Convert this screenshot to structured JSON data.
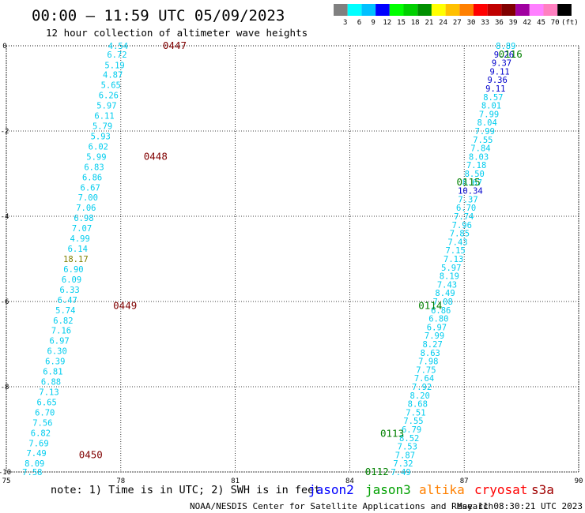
{
  "header": {
    "title": "00:00 – 11:59 UTC 05/09/2023",
    "subtitle": "12 hour collection of altimeter wave heights"
  },
  "color_scale": {
    "colors": [
      "#808080",
      "#00ffff",
      "#00c0ff",
      "#0000ff",
      "#00ff00",
      "#00d000",
      "#009000",
      "#ffff00",
      "#ffc000",
      "#ff8000",
      "#ff0000",
      "#c00000",
      "#800000",
      "#a000a0",
      "#ff80ff",
      "#ff80c0",
      "#000000"
    ],
    "labels": [
      "3",
      "6",
      "9",
      "12",
      "15",
      "18",
      "21",
      "24",
      "27",
      "30",
      "33",
      "36",
      "39",
      "42",
      "45",
      "70",
      "(ft)"
    ]
  },
  "axes": {
    "x_ticks": [
      "75",
      "78",
      "81",
      "84",
      "87",
      "90"
    ],
    "y_ticks": [
      "0",
      "-2",
      "-4",
      "-6",
      "-8",
      "-10"
    ],
    "x_range": [
      75,
      90
    ],
    "y_range": [
      0,
      -10
    ],
    "grid": true
  },
  "orbit_labels": [
    {
      "text": "0447",
      "lon": 79.1,
      "lat": 0.0,
      "color": "#800000"
    },
    {
      "text": "0448",
      "lon": 78.6,
      "lat": -2.6,
      "color": "#800000"
    },
    {
      "text": "0449",
      "lon": 77.8,
      "lat": -6.1,
      "color": "#800000"
    },
    {
      "text": "0450",
      "lon": 76.9,
      "lat": -9.6,
      "color": "#800000"
    },
    {
      "text": "0116",
      "lon": 87.9,
      "lat": -0.2,
      "color": "#008000"
    },
    {
      "text": "0115",
      "lon": 86.8,
      "lat": -3.2,
      "color": "#008000"
    },
    {
      "text": "0114",
      "lon": 85.8,
      "lat": -6.1,
      "color": "#008000"
    },
    {
      "text": "0113",
      "lon": 84.8,
      "lat": -9.1,
      "color": "#008000"
    },
    {
      "text": "0112",
      "lon": 84.4,
      "lat": -10.0,
      "color": "#008000"
    }
  ],
  "tracks": [
    {
      "color": "#00ccee",
      "points": [
        {
          "lon": 77.93,
          "lat": 0.0,
          "v": "4.54"
        },
        {
          "lon": 77.9,
          "lat": -0.2,
          "v": "6.72"
        },
        {
          "lon": 77.84,
          "lat": -0.45,
          "v": "5.19"
        },
        {
          "lon": 77.79,
          "lat": -0.68,
          "v": "4.87"
        },
        {
          "lon": 77.74,
          "lat": -0.92,
          "v": "5.65"
        },
        {
          "lon": 77.68,
          "lat": -1.16,
          "v": "6.26"
        },
        {
          "lon": 77.63,
          "lat": -1.4,
          "v": "5.97"
        },
        {
          "lon": 77.57,
          "lat": -1.64,
          "v": "6.11"
        },
        {
          "lon": 77.52,
          "lat": -1.88,
          "v": "5.79"
        },
        {
          "lon": 77.47,
          "lat": -2.12,
          "v": "5.93"
        },
        {
          "lon": 77.41,
          "lat": -2.36,
          "v": "6.02"
        },
        {
          "lon": 77.36,
          "lat": -2.6,
          "v": "5.99"
        },
        {
          "lon": 77.3,
          "lat": -2.84,
          "v": "6.83"
        },
        {
          "lon": 77.25,
          "lat": -3.08,
          "v": "6.86"
        },
        {
          "lon": 77.2,
          "lat": -3.32,
          "v": "6.67"
        },
        {
          "lon": 77.14,
          "lat": -3.56,
          "v": "7.00"
        },
        {
          "lon": 77.09,
          "lat": -3.8,
          "v": "7.06"
        },
        {
          "lon": 77.03,
          "lat": -4.04,
          "v": "6.98"
        },
        {
          "lon": 76.98,
          "lat": -4.28,
          "v": "7.07"
        },
        {
          "lon": 76.93,
          "lat": -4.52,
          "v": "4.99"
        },
        {
          "lon": 76.87,
          "lat": -4.76,
          "v": "6.14"
        },
        {
          "lon": 76.82,
          "lat": -5.0,
          "v": "18.17",
          "color": "#808000"
        },
        {
          "lon": 76.76,
          "lat": -5.24,
          "v": "6.90"
        },
        {
          "lon": 76.71,
          "lat": -5.48,
          "v": "6.09"
        },
        {
          "lon": 76.66,
          "lat": -5.72,
          "v": "6.33"
        },
        {
          "lon": 76.6,
          "lat": -5.96,
          "v": "6.47"
        },
        {
          "lon": 76.55,
          "lat": -6.2,
          "v": "5.74"
        },
        {
          "lon": 76.49,
          "lat": -6.44,
          "v": "6.82"
        },
        {
          "lon": 76.44,
          "lat": -6.68,
          "v": "7.16"
        },
        {
          "lon": 76.39,
          "lat": -6.92,
          "v": "6.97"
        },
        {
          "lon": 76.33,
          "lat": -7.16,
          "v": "6.30"
        },
        {
          "lon": 76.28,
          "lat": -7.4,
          "v": "6.39"
        },
        {
          "lon": 76.22,
          "lat": -7.64,
          "v": "6.81"
        },
        {
          "lon": 76.17,
          "lat": -7.88,
          "v": "6.88"
        },
        {
          "lon": 76.12,
          "lat": -8.12,
          "v": "7.13"
        },
        {
          "lon": 76.06,
          "lat": -8.36,
          "v": "6.65"
        },
        {
          "lon": 76.01,
          "lat": -8.6,
          "v": "6.70"
        },
        {
          "lon": 75.95,
          "lat": -8.84,
          "v": "7.56"
        },
        {
          "lon": 75.9,
          "lat": -9.08,
          "v": "6.82"
        },
        {
          "lon": 75.85,
          "lat": -9.32,
          "v": "7.69"
        },
        {
          "lon": 75.79,
          "lat": -9.56,
          "v": "7.49"
        },
        {
          "lon": 75.74,
          "lat": -9.8,
          "v": "8.09"
        },
        {
          "lon": 75.68,
          "lat": -10.0,
          "v": "7.58"
        }
      ]
    },
    {
      "color": "#00ccee",
      "points": [
        {
          "lon": 88.09,
          "lat": 0.0,
          "v": "8.89"
        },
        {
          "lon": 88.04,
          "lat": -0.2,
          "v": "9.26",
          "color": "#0000cc"
        },
        {
          "lon": 87.98,
          "lat": -0.4,
          "v": "9.37",
          "color": "#0000cc"
        },
        {
          "lon": 87.93,
          "lat": -0.6,
          "v": "9.11",
          "color": "#0000cc"
        },
        {
          "lon": 87.87,
          "lat": -0.8,
          "v": "9.36",
          "color": "#0000cc"
        },
        {
          "lon": 87.82,
          "lat": -1.0,
          "v": "9.11",
          "color": "#0000cc"
        },
        {
          "lon": 87.76,
          "lat": -1.2,
          "v": "8.57"
        },
        {
          "lon": 87.71,
          "lat": -1.4,
          "v": "8.01"
        },
        {
          "lon": 87.65,
          "lat": -1.6,
          "v": "7.99"
        },
        {
          "lon": 87.6,
          "lat": -1.8,
          "v": "8.04"
        },
        {
          "lon": 87.54,
          "lat": -2.0,
          "v": "7.99"
        },
        {
          "lon": 87.49,
          "lat": -2.2,
          "v": "7.55"
        },
        {
          "lon": 87.43,
          "lat": -2.4,
          "v": "7.84"
        },
        {
          "lon": 87.38,
          "lat": -2.6,
          "v": "8.03"
        },
        {
          "lon": 87.32,
          "lat": -2.8,
          "v": "7.18"
        },
        {
          "lon": 87.27,
          "lat": -3.0,
          "v": "8.50"
        },
        {
          "lon": 87.21,
          "lat": -3.2,
          "v": "8.67"
        },
        {
          "lon": 87.16,
          "lat": -3.4,
          "v": "10.34",
          "color": "#0000cc"
        },
        {
          "lon": 87.1,
          "lat": -3.6,
          "v": "7.37"
        },
        {
          "lon": 87.05,
          "lat": -3.8,
          "v": "6.70"
        },
        {
          "lon": 86.99,
          "lat": -4.0,
          "v": "7.74"
        },
        {
          "lon": 86.94,
          "lat": -4.2,
          "v": "7.96"
        },
        {
          "lon": 86.88,
          "lat": -4.4,
          "v": "7.85"
        },
        {
          "lon": 86.83,
          "lat": -4.6,
          "v": "7.43"
        },
        {
          "lon": 86.77,
          "lat": -4.8,
          "v": "7.15"
        },
        {
          "lon": 86.72,
          "lat": -5.0,
          "v": "7.13"
        },
        {
          "lon": 86.66,
          "lat": -5.2,
          "v": "5.97"
        },
        {
          "lon": 86.61,
          "lat": -5.4,
          "v": "8.19"
        },
        {
          "lon": 86.55,
          "lat": -5.6,
          "v": "7.43"
        },
        {
          "lon": 86.5,
          "lat": -5.8,
          "v": "8.49"
        },
        {
          "lon": 86.44,
          "lat": -6.0,
          "v": "7.08"
        },
        {
          "lon": 86.39,
          "lat": -6.2,
          "v": "6.86"
        },
        {
          "lon": 86.33,
          "lat": -6.4,
          "v": "6.80"
        },
        {
          "lon": 86.28,
          "lat": -6.6,
          "v": "6.97"
        },
        {
          "lon": 86.22,
          "lat": -6.8,
          "v": "7.99"
        },
        {
          "lon": 86.17,
          "lat": -7.0,
          "v": "8.27"
        },
        {
          "lon": 86.11,
          "lat": -7.2,
          "v": "8.63"
        },
        {
          "lon": 86.06,
          "lat": -7.4,
          "v": "7.98"
        },
        {
          "lon": 86.0,
          "lat": -7.6,
          "v": "7.75"
        },
        {
          "lon": 85.95,
          "lat": -7.8,
          "v": "7.64"
        },
        {
          "lon": 85.89,
          "lat": -8.0,
          "v": "7.92"
        },
        {
          "lon": 85.84,
          "lat": -8.2,
          "v": "8.20"
        },
        {
          "lon": 85.78,
          "lat": -8.4,
          "v": "8.68"
        },
        {
          "lon": 85.73,
          "lat": -8.6,
          "v": "7.51"
        },
        {
          "lon": 85.67,
          "lat": -8.8,
          "v": "7.55"
        },
        {
          "lon": 85.62,
          "lat": -9.0,
          "v": "6.79"
        },
        {
          "lon": 85.56,
          "lat": -9.2,
          "v": "8.52"
        },
        {
          "lon": 85.51,
          "lat": -9.4,
          "v": "7.53"
        },
        {
          "lon": 85.45,
          "lat": -9.6,
          "v": "7.87"
        },
        {
          "lon": 85.4,
          "lat": -9.8,
          "v": "7.32"
        },
        {
          "lon": 85.34,
          "lat": -10.0,
          "v": "7.49"
        }
      ]
    }
  ],
  "note": "note: 1) Time is in UTC; 2) SWH is in feet",
  "satellites": [
    {
      "name": "jason2",
      "color": "#0000ff"
    },
    {
      "name": "jason3",
      "color": "#00a000"
    },
    {
      "name": "altika",
      "color": "#ff8000"
    },
    {
      "name": "cryosat",
      "color": "#ff0000"
    },
    {
      "name": "s3a",
      "color": "#a00000"
    }
  ],
  "footer": {
    "credit": "NOAA/NESDIS Center for Satellite Applications and Research",
    "timestamp": "May 11 08:30:21 UTC 2023"
  }
}
